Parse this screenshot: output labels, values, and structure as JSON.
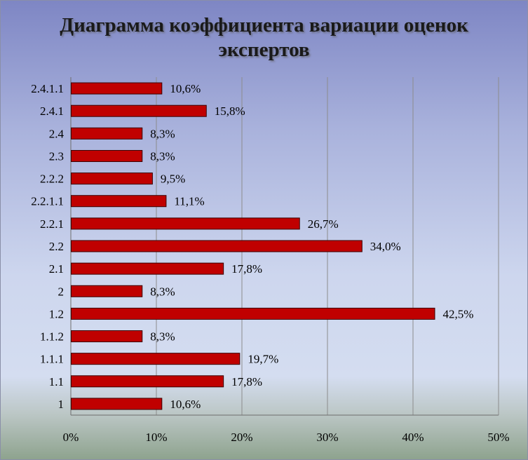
{
  "chart_data": {
    "type": "bar",
    "orientation": "horizontal",
    "title": "Диаграмма коэффициента вариации оценок экспертов",
    "categories": [
      "2.4.1.1",
      "2.4.1",
      "2.4",
      "2.3",
      "2.2.2",
      "2.2.1.1",
      "2.2.1",
      "2.2",
      "2.1",
      "2",
      "1.2",
      "1.1.2",
      "1.1.1",
      "1.1",
      "1"
    ],
    "values": [
      10.6,
      15.8,
      8.3,
      8.3,
      9.5,
      11.1,
      26.7,
      34.0,
      17.8,
      8.3,
      42.5,
      8.3,
      19.7,
      17.8,
      10.6
    ],
    "data_labels": [
      "10,6%",
      "15,8%",
      "8,3%",
      "8,3%",
      "9,5%",
      "11,1%",
      "26,7%",
      "34,0%",
      "17,8%",
      "8,3%",
      "42,5%",
      "8,3%",
      "19,7%",
      "17,8%",
      "10,6%"
    ],
    "x_ticks": [
      0,
      10,
      20,
      30,
      40,
      50
    ],
    "x_tick_labels": [
      "0%",
      "10%",
      "20%",
      "30%",
      "40%",
      "50%"
    ],
    "xlim": [
      0,
      50
    ],
    "xlabel": "",
    "ylabel": "",
    "grid": "vertical",
    "legend": "none",
    "bar_color": "#c00000",
    "bar_border_color": "#3a0000",
    "gridline_color": "#8c8c8c"
  }
}
